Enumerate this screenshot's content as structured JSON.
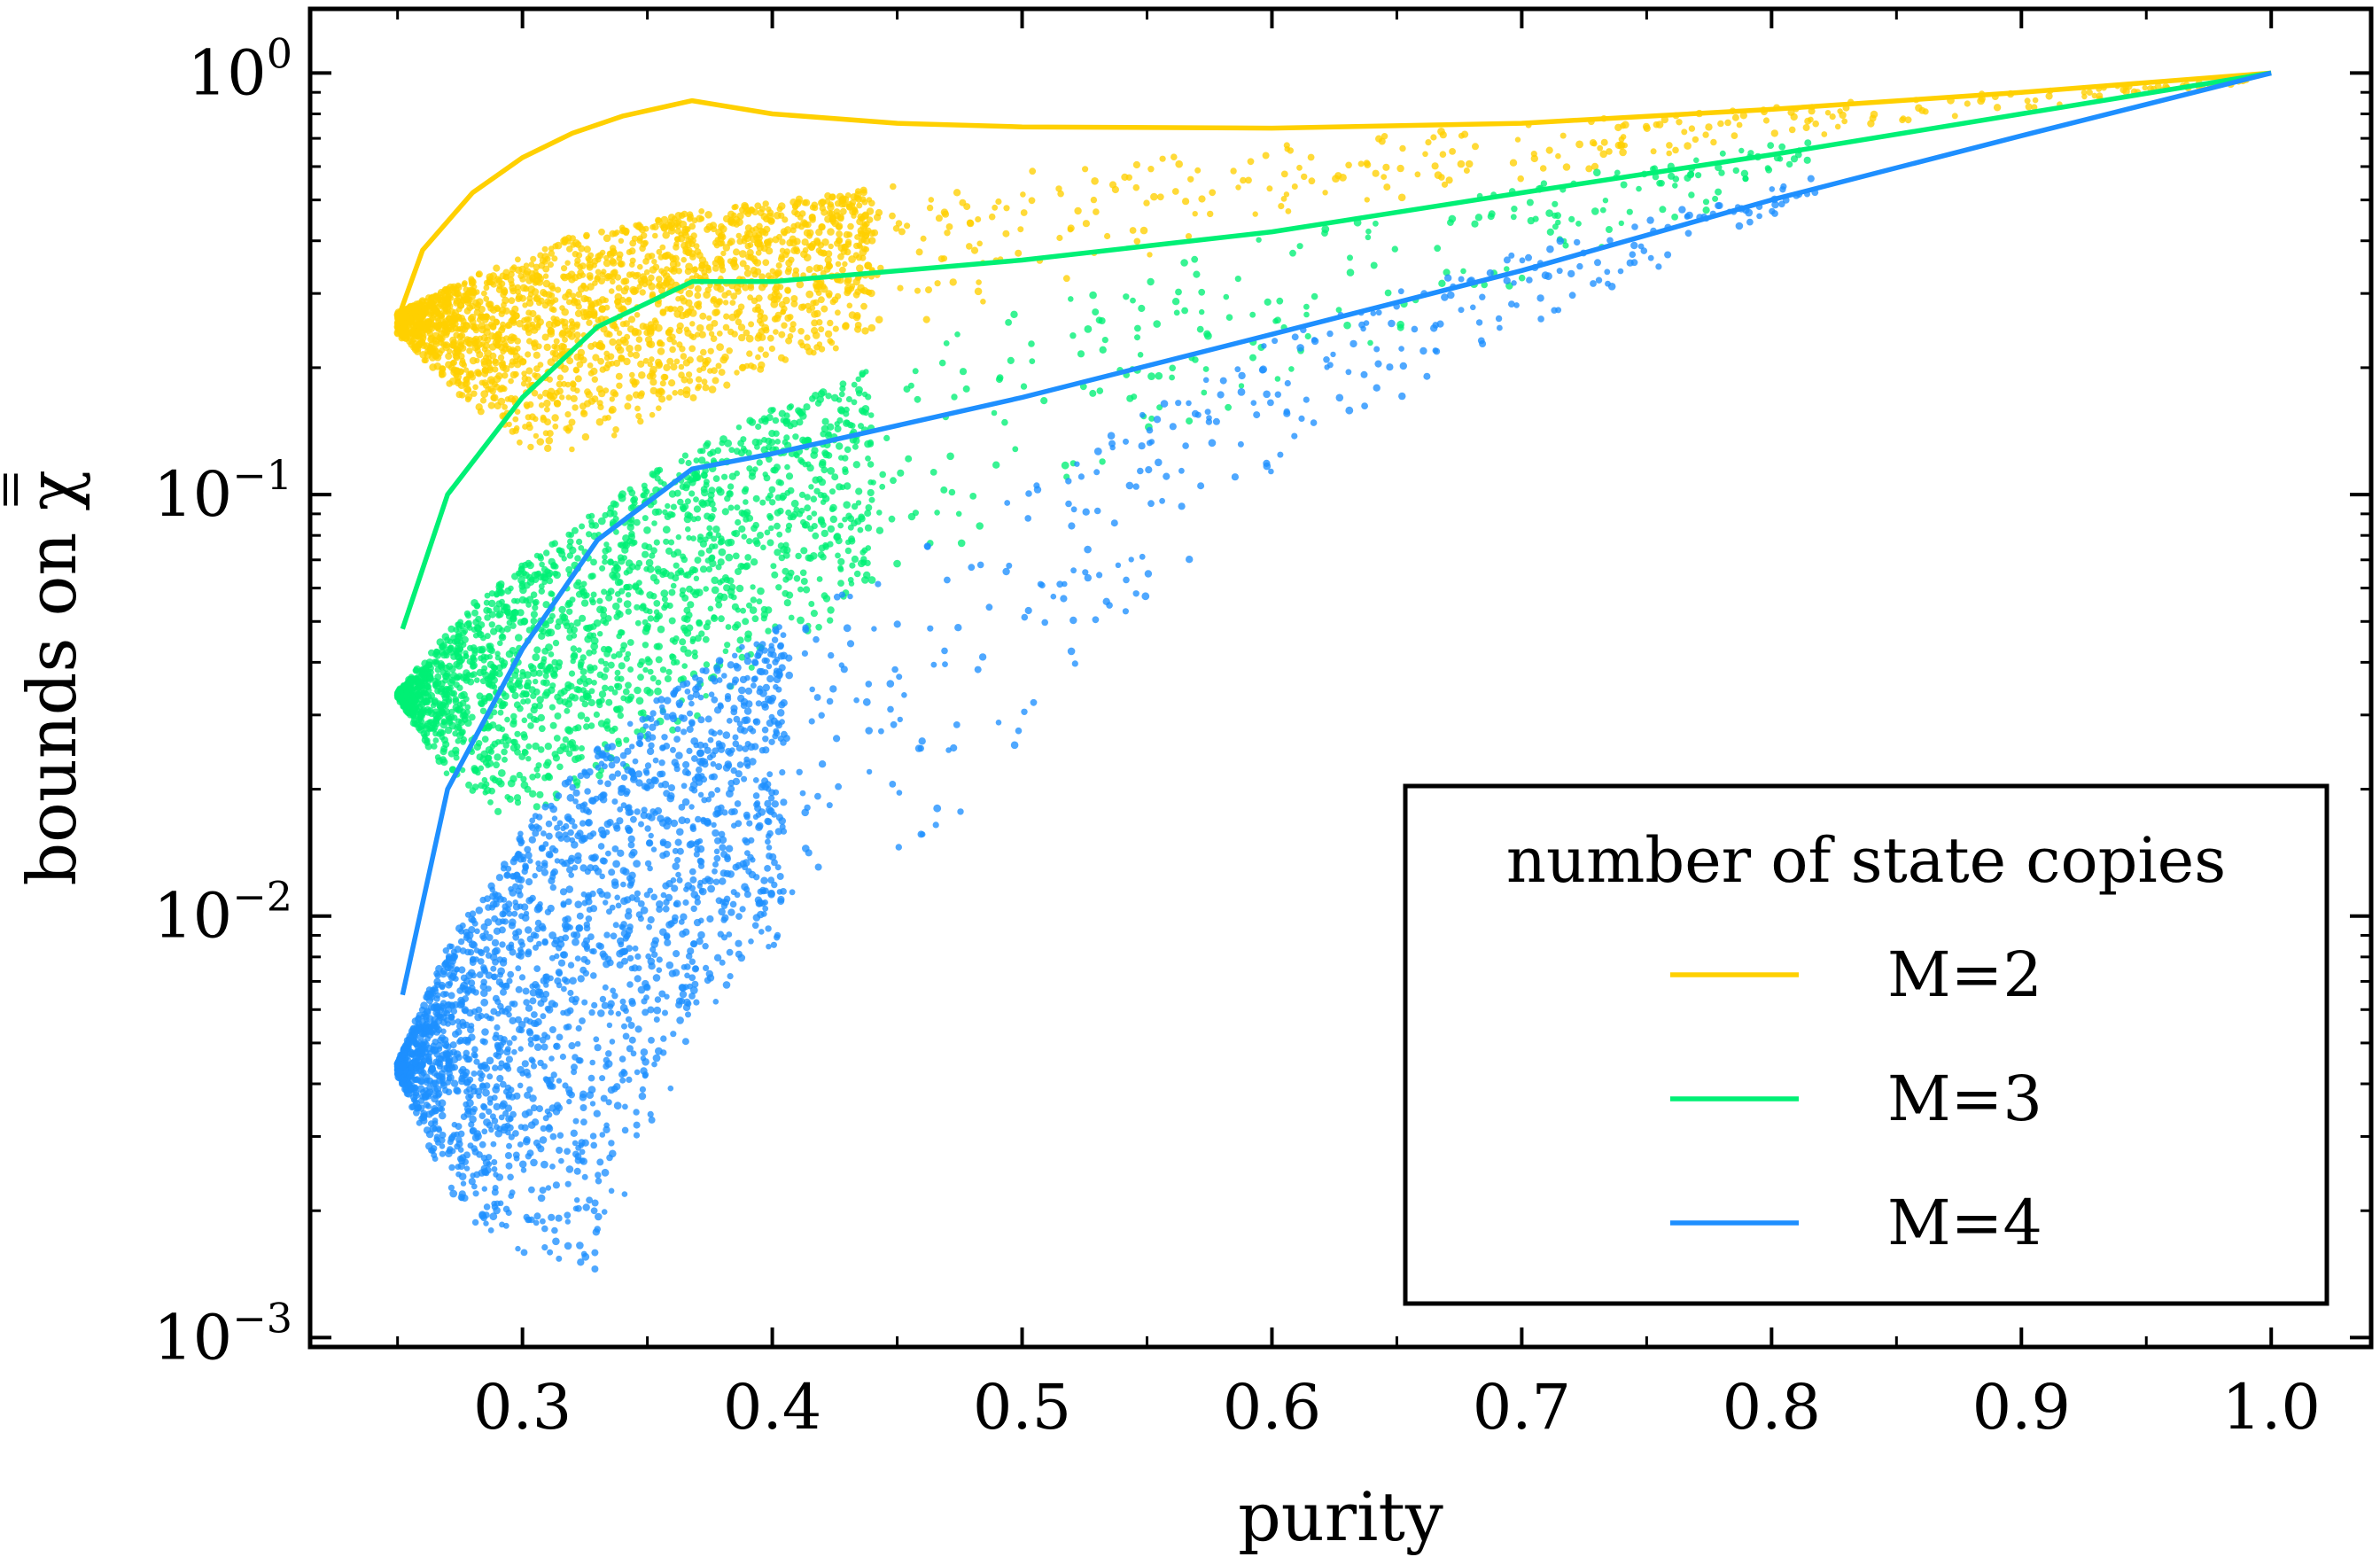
{
  "chart_data": {
    "type": "scatter",
    "title": "",
    "xlabel": "purity",
    "ylabel": "bounds on χ̿",
    "ylabel_prefix": "bounds on ",
    "ylabel_symbol": "χ",
    "xlim": [
      0.215,
      1.04
    ],
    "ylim": [
      0.00095,
      1.42
    ],
    "yscale": "log",
    "x_ticks": [
      0.3,
      0.4,
      0.5,
      0.6,
      0.7,
      0.8,
      0.9,
      1.0
    ],
    "x_tick_labels": [
      "0.3",
      "0.4",
      "0.5",
      "0.6",
      "0.7",
      "0.8",
      "0.9",
      "1.0"
    ],
    "y_ticks": [
      {
        "value": 1,
        "base": "10",
        "exp": "0"
      },
      {
        "value": 0.1,
        "base": "10",
        "exp": "−1"
      },
      {
        "value": 0.01,
        "base": "10",
        "exp": "−2"
      },
      {
        "value": 0.001,
        "base": "10",
        "exp": "−3"
      }
    ],
    "legend": {
      "title": "number of state copies",
      "placement": "lower-right"
    },
    "series": [
      {
        "name": "M=2",
        "color": "#ffd000",
        "bound": [
          [
            0.25,
            0.26
          ],
          [
            0.26,
            0.38
          ],
          [
            0.28,
            0.52
          ],
          [
            0.3,
            0.63
          ],
          [
            0.32,
            0.72
          ],
          [
            0.34,
            0.79
          ],
          [
            0.3679,
            0.86
          ],
          [
            0.4,
            0.8
          ],
          [
            0.45,
            0.76
          ],
          [
            0.5,
            0.745
          ],
          [
            0.6,
            0.74
          ],
          [
            0.7,
            0.76
          ],
          [
            0.8,
            0.82
          ],
          [
            0.9,
            0.9
          ],
          [
            1.0,
            1.0
          ]
        ],
        "cloud": {
          "x_start": 0.25,
          "x_mid": 0.32,
          "x_end": 0.99,
          "count": 2400,
          "upper": [
            [
              0.25,
              0.27
            ],
            [
              0.28,
              0.33
            ],
            [
              0.32,
              0.41
            ],
            [
              0.37,
              0.47
            ],
            [
              0.45,
              0.54
            ],
            [
              0.55,
              0.63
            ],
            [
              0.7,
              0.76
            ],
            [
              0.85,
              0.87
            ],
            [
              0.99,
              0.97
            ]
          ],
          "lower": [
            [
              0.25,
              0.24
            ],
            [
              0.28,
              0.16
            ],
            [
              0.3,
              0.125
            ],
            [
              0.32,
              0.12
            ],
            [
              0.35,
              0.15
            ],
            [
              0.4,
              0.2
            ],
            [
              0.5,
              0.3
            ],
            [
              0.6,
              0.42
            ],
            [
              0.7,
              0.55
            ],
            [
              0.85,
              0.75
            ],
            [
              0.99,
              0.95
            ]
          ]
        }
      },
      {
        "name": "M=3",
        "color": "#00f075",
        "bound": [
          [
            0.252,
            0.048
          ],
          [
            0.27,
            0.1
          ],
          [
            0.3,
            0.17
          ],
          [
            0.33,
            0.25
          ],
          [
            0.3679,
            0.32
          ],
          [
            0.4,
            0.32
          ],
          [
            0.5,
            0.36
          ],
          [
            0.6,
            0.42
          ],
          [
            0.7,
            0.52
          ],
          [
            0.8,
            0.64
          ],
          [
            0.9,
            0.8
          ],
          [
            1.0,
            1.0
          ]
        ],
        "cloud": {
          "x_start": 0.25,
          "x_mid": 0.32,
          "x_end": 0.82,
          "count": 2200,
          "upper": [
            [
              0.25,
              0.034
            ],
            [
              0.28,
              0.055
            ],
            [
              0.32,
              0.085
            ],
            [
              0.36,
              0.12
            ],
            [
              0.4,
              0.16
            ],
            [
              0.45,
              0.21
            ],
            [
              0.5,
              0.28
            ],
            [
              0.55,
              0.34
            ],
            [
              0.6,
              0.42
            ],
            [
              0.7,
              0.55
            ],
            [
              0.82,
              0.72
            ]
          ],
          "lower": [
            [
              0.25,
              0.033
            ],
            [
              0.27,
              0.021
            ],
            [
              0.29,
              0.017
            ],
            [
              0.31,
              0.018
            ],
            [
              0.34,
              0.022
            ],
            [
              0.38,
              0.032
            ],
            [
              0.42,
              0.048
            ],
            [
              0.48,
              0.075
            ],
            [
              0.55,
              0.13
            ],
            [
              0.65,
              0.24
            ],
            [
              0.82,
              0.6
            ]
          ]
        }
      },
      {
        "name": "M=4",
        "color": "#1e8fff",
        "bound": [
          [
            0.252,
            0.0065
          ],
          [
            0.27,
            0.02
          ],
          [
            0.3,
            0.043
          ],
          [
            0.33,
            0.078
          ],
          [
            0.3679,
            0.115
          ],
          [
            0.4,
            0.125
          ],
          [
            0.5,
            0.17
          ],
          [
            0.6,
            0.24
          ],
          [
            0.7,
            0.34
          ],
          [
            0.8,
            0.5
          ],
          [
            0.9,
            0.71
          ],
          [
            1.0,
            1.0
          ]
        ],
        "cloud": {
          "x_start": 0.25,
          "x_mid": 0.285,
          "x_end": 0.82,
          "count": 2600,
          "upper": [
            [
              0.25,
              0.0045
            ],
            [
              0.27,
              0.0085
            ],
            [
              0.3,
              0.016
            ],
            [
              0.33,
              0.025
            ],
            [
              0.36,
              0.035
            ],
            [
              0.4,
              0.048
            ],
            [
              0.45,
              0.07
            ],
            [
              0.5,
              0.1
            ],
            [
              0.55,
              0.16
            ],
            [
              0.6,
              0.24
            ],
            [
              0.7,
              0.38
            ],
            [
              0.82,
              0.58
            ]
          ],
          "lower": [
            [
              0.25,
              0.0042
            ],
            [
              0.27,
              0.0022
            ],
            [
              0.29,
              0.0016
            ],
            [
              0.31,
              0.0014
            ],
            [
              0.33,
              0.0014
            ],
            [
              0.35,
              0.003
            ],
            [
              0.38,
              0.0065
            ],
            [
              0.42,
              0.01
            ],
            [
              0.47,
              0.014
            ],
            [
              0.5,
              0.024
            ],
            [
              0.55,
              0.05
            ],
            [
              0.6,
              0.11
            ],
            [
              0.7,
              0.24
            ],
            [
              0.82,
              0.5
            ]
          ]
        }
      }
    ]
  }
}
